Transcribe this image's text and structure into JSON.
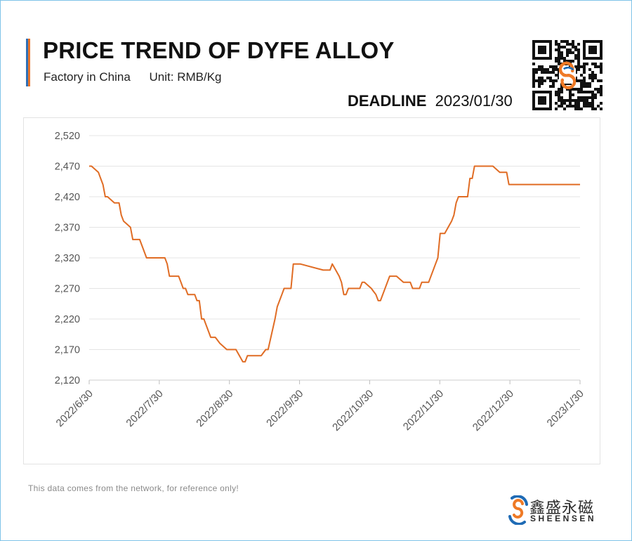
{
  "header": {
    "title": "PRICE TREND OF DYFE ALLOY",
    "subtitle_origin": "Factory in China",
    "subtitle_unit": "Unit: RMB/Kg",
    "deadline_label": "DEADLINE",
    "deadline_date": "2023/01/30"
  },
  "footer": {
    "note": "This data comes from the network, for reference only!",
    "brand_cn": "鑫盛永磁",
    "brand_en": "SHEENSEN"
  },
  "colors": {
    "line": "#e06c24",
    "brand_blue": "#1f6bb5",
    "brand_orange": "#ef7a26"
  },
  "chart_data": {
    "type": "line",
    "title": "PRICE TREND OF DYFE ALLOY",
    "subtitle": "Factory in China    Unit: RMB/Kg",
    "xlabel": "",
    "ylabel": "",
    "ylim": [
      2120,
      2520
    ],
    "yticks": [
      2120,
      2170,
      2220,
      2270,
      2320,
      2370,
      2420,
      2470,
      2520
    ],
    "ytick_labels": [
      "2,120",
      "2,170",
      "2,220",
      "2,270",
      "2,320",
      "2,370",
      "2,420",
      "2,470",
      "2,520"
    ],
    "xlim": [
      "2022-06-30",
      "2023-01-30"
    ],
    "xtick_labels": [
      "2022/6/30",
      "2022/7/30",
      "2022/8/30",
      "2022/9/30",
      "2022/10/30",
      "2022/11/30",
      "2022/12/30",
      "2023/1/30"
    ],
    "grid": "horizontal",
    "series": [
      {
        "x": [
          "2022-06-30",
          "2022-07-01",
          "2022-07-04",
          "2022-07-05",
          "2022-07-06",
          "2022-07-07",
          "2022-07-08",
          "2022-07-11",
          "2022-07-12",
          "2022-07-13",
          "2022-07-14",
          "2022-07-15",
          "2022-07-18",
          "2022-07-19",
          "2022-07-20",
          "2022-07-21",
          "2022-07-22",
          "2022-07-25",
          "2022-07-26",
          "2022-07-27",
          "2022-07-28",
          "2022-07-29",
          "2022-08-01",
          "2022-08-02",
          "2022-08-03",
          "2022-08-04",
          "2022-08-05",
          "2022-08-08",
          "2022-08-09",
          "2022-08-10",
          "2022-08-11",
          "2022-08-12",
          "2022-08-15",
          "2022-08-16",
          "2022-08-17",
          "2022-08-18",
          "2022-08-19",
          "2022-08-22",
          "2022-08-23",
          "2022-08-24",
          "2022-08-25",
          "2022-08-26",
          "2022-08-29",
          "2022-08-30",
          "2022-08-31",
          "2022-09-01",
          "2022-09-02",
          "2022-09-05",
          "2022-09-06",
          "2022-09-07",
          "2022-09-08",
          "2022-09-09",
          "2022-09-13",
          "2022-09-14",
          "2022-09-15",
          "2022-09-16",
          "2022-09-19",
          "2022-09-20",
          "2022-09-21",
          "2022-09-22",
          "2022-09-23",
          "2022-09-26",
          "2022-09-27",
          "2022-09-28",
          "2022-09-29",
          "2022-09-30",
          "2022-10-10",
          "2022-10-11",
          "2022-10-12",
          "2022-10-13",
          "2022-10-14",
          "2022-10-17",
          "2022-10-18",
          "2022-10-19",
          "2022-10-20",
          "2022-10-21",
          "2022-10-24",
          "2022-10-25",
          "2022-10-26",
          "2022-10-27",
          "2022-10-28",
          "2022-10-31",
          "2022-11-01",
          "2022-11-02",
          "2022-11-03",
          "2022-11-04",
          "2022-11-07",
          "2022-11-08",
          "2022-11-09",
          "2022-11-10",
          "2022-11-11",
          "2022-11-14",
          "2022-11-15",
          "2022-11-16",
          "2022-11-17",
          "2022-11-18",
          "2022-11-21",
          "2022-11-22",
          "2022-11-23",
          "2022-11-24",
          "2022-11-25",
          "2022-11-28",
          "2022-11-29",
          "2022-11-30",
          "2022-12-01",
          "2022-12-02",
          "2022-12-05",
          "2022-12-06",
          "2022-12-07",
          "2022-12-08",
          "2022-12-09",
          "2022-12-12",
          "2022-12-13",
          "2022-12-14",
          "2022-12-15",
          "2022-12-16",
          "2022-12-19",
          "2022-12-20",
          "2022-12-21",
          "2022-12-22",
          "2022-12-23",
          "2022-12-26",
          "2022-12-27",
          "2022-12-28",
          "2022-12-29",
          "2022-12-30",
          "2023-01-03",
          "2023-01-04",
          "2023-01-05",
          "2023-01-06",
          "2023-01-09",
          "2023-01-10",
          "2023-01-11",
          "2023-01-12",
          "2023-01-13",
          "2023-01-16",
          "2023-01-17",
          "2023-01-18",
          "2023-01-19",
          "2023-01-20",
          "2023-01-30"
        ],
        "values": [
          2470,
          2470,
          2460,
          2450,
          2440,
          2420,
          2420,
          2410,
          2410,
          2410,
          2390,
          2380,
          2370,
          2350,
          2350,
          2350,
          2350,
          2320,
          2320,
          2320,
          2320,
          2320,
          2320,
          2320,
          2310,
          2290,
          2290,
          2290,
          2280,
          2270,
          2270,
          2260,
          2260,
          2250,
          2250,
          2220,
          2220,
          2190,
          2190,
          2190,
          2185,
          2180,
          2170,
          2170,
          2170,
          2170,
          2170,
          2150,
          2150,
          2160,
          2160,
          2160,
          2160,
          2165,
          2170,
          2170,
          2220,
          2240,
          2250,
          2260,
          2270,
          2270,
          2310,
          2310,
          2310,
          2310,
          2300,
          2300,
          2300,
          2300,
          2310,
          2290,
          2280,
          2260,
          2260,
          2270,
          2270,
          2270,
          2270,
          2280,
          2280,
          2270,
          2265,
          2260,
          2250,
          2250,
          2280,
          2290,
          2290,
          2290,
          2290,
          2280,
          2280,
          2280,
          2280,
          2270,
          2270,
          2280,
          2280,
          2280,
          2280,
          2310,
          2320,
          2360,
          2360,
          2360,
          2380,
          2390,
          2410,
          2420,
          2420,
          2420,
          2450,
          2450,
          2470,
          2470,
          2470,
          2470,
          2470,
          2470,
          2470,
          2460,
          2460,
          2460,
          2460,
          2440,
          2440,
          2440,
          2440,
          2440,
          2440,
          2440,
          2440,
          2440,
          2440,
          2440,
          2440,
          2440,
          2440,
          2440,
          2440
        ]
      }
    ]
  }
}
